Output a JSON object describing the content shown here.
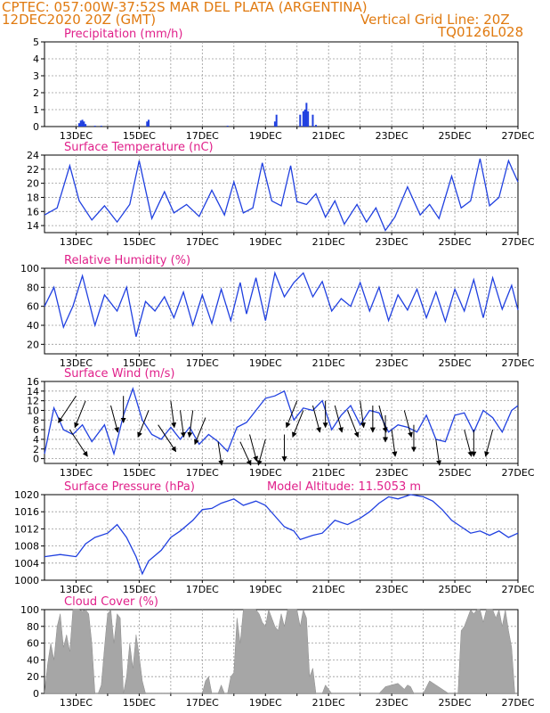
{
  "header": {
    "line1": "CPTEC:  057:00W-37:52S  MAR DEL PLATA (ARGENTINA)",
    "line2_left": "12DEC2020 20Z (GMT)",
    "line2_right": "Vertical Grid Line: 20Z",
    "line3_right": "TQ0126L028"
  },
  "colors": {
    "header": "#e07a10",
    "panel_title": "#e0208a",
    "series": "#2040e0",
    "cloud_fill": "#a6a6a6",
    "arrow": "#000000",
    "grid": "#9a9a9a"
  },
  "x_ticks": [
    "13DEC",
    "15DEC",
    "17DEC",
    "19DEC",
    "21DEC",
    "23DEC",
    "25DEC",
    "27DEC"
  ],
  "chart_data": [
    {
      "type": "bar",
      "title": "Precipitation (mm/h)",
      "yticks": [
        "0",
        "1",
        "2",
        "3",
        "4",
        "5"
      ],
      "ylim": [
        0,
        5
      ],
      "grid": true,
      "x_days": [
        13.1,
        13.15,
        13.2,
        13.25,
        13.3,
        13.6,
        13.8,
        15.25,
        15.3,
        17.8,
        19.3,
        19.35,
        20.1,
        20.2,
        20.25,
        20.3,
        20.35,
        20.5,
        20.6
      ],
      "values": [
        0.2,
        0.35,
        0.4,
        0.3,
        0.15,
        0.05,
        0.05,
        0.3,
        0.4,
        0.05,
        0.3,
        0.7,
        0.7,
        0.9,
        1.0,
        1.4,
        0.9,
        0.7,
        0.1
      ]
    },
    {
      "type": "line",
      "title": "Surface Temperature (nC)",
      "yticks": [
        "14",
        "16",
        "18",
        "20",
        "22",
        "24"
      ],
      "ylim": [
        13,
        24
      ],
      "grid": true,
      "x_days": [
        12.0,
        12.4,
        12.8,
        13.1,
        13.5,
        13.9,
        14.3,
        14.7,
        15.0,
        15.4,
        15.8,
        16.1,
        16.5,
        16.9,
        17.3,
        17.7,
        18.0,
        18.3,
        18.6,
        18.9,
        19.2,
        19.5,
        19.8,
        20.0,
        20.3,
        20.6,
        20.9,
        21.2,
        21.5,
        21.9,
        22.2,
        22.5,
        22.8,
        23.1,
        23.5,
        23.9,
        24.2,
        24.5,
        24.9,
        25.2,
        25.5,
        25.8,
        26.1,
        26.4,
        26.7,
        27.0
      ],
      "values": [
        15.5,
        16.5,
        22.5,
        17.5,
        14.8,
        16.8,
        14.5,
        17.0,
        23.2,
        15.0,
        18.8,
        15.8,
        17.0,
        15.3,
        19.0,
        15.5,
        20.2,
        15.8,
        16.5,
        22.9,
        17.5,
        16.8,
        22.5,
        17.4,
        17.0,
        18.5,
        15.2,
        17.5,
        14.2,
        17.0,
        14.5,
        16.5,
        13.3,
        15.2,
        19.5,
        15.5,
        17.0,
        15.0,
        21.0,
        16.5,
        17.5,
        23.5,
        16.8,
        18.0,
        23.2,
        20.2
      ]
    },
    {
      "type": "line",
      "title": "Relative Humidity (%)",
      "yticks": [
        "20",
        "40",
        "60",
        "80",
        "100"
      ],
      "ylim": [
        10,
        100
      ],
      "grid": true,
      "x_days": [
        12.0,
        12.3,
        12.6,
        12.9,
        13.2,
        13.6,
        13.9,
        14.3,
        14.6,
        14.9,
        15.2,
        15.5,
        15.8,
        16.1,
        16.4,
        16.7,
        17.0,
        17.3,
        17.6,
        17.9,
        18.2,
        18.4,
        18.7,
        19.0,
        19.3,
        19.6,
        19.9,
        20.2,
        20.5,
        20.8,
        21.1,
        21.4,
        21.7,
        22.0,
        22.3,
        22.6,
        22.9,
        23.2,
        23.5,
        23.8,
        24.1,
        24.4,
        24.7,
        25.0,
        25.3,
        25.6,
        25.9,
        26.2,
        26.5,
        26.8,
        27.0
      ],
      "values": [
        60,
        80,
        38,
        60,
        92,
        40,
        72,
        55,
        80,
        28,
        65,
        55,
        70,
        48,
        75,
        40,
        72,
        42,
        78,
        45,
        85,
        52,
        90,
        45,
        95,
        70,
        85,
        95,
        70,
        86,
        55,
        68,
        60,
        85,
        55,
        80,
        45,
        72,
        56,
        78,
        48,
        75,
        44,
        78,
        55,
        88,
        48,
        90,
        57,
        82,
        56
      ]
    },
    {
      "type": "line",
      "title": "Surface Wind (m/s)",
      "subtype": "wind-barbs",
      "yticks": [
        "0",
        "2",
        "4",
        "6",
        "8",
        "10",
        "12",
        "14",
        "16"
      ],
      "ylim": [
        -1,
        16
      ],
      "grid": true,
      "x_days": [
        12.0,
        12.3,
        12.6,
        12.9,
        13.2,
        13.5,
        13.9,
        14.2,
        14.5,
        14.8,
        15.1,
        15.4,
        15.7,
        16.0,
        16.3,
        16.6,
        16.9,
        17.2,
        17.5,
        17.8,
        18.1,
        18.4,
        18.7,
        19.0,
        19.3,
        19.6,
        19.9,
        20.2,
        20.5,
        20.8,
        21.1,
        21.4,
        21.7,
        22.0,
        22.3,
        22.6,
        22.9,
        23.2,
        23.5,
        23.8,
        24.1,
        24.4,
        24.7,
        25.0,
        25.3,
        25.6,
        25.9,
        26.2,
        26.5,
        26.8,
        27.0
      ],
      "values": [
        1.0,
        10.5,
        6.0,
        5.0,
        7.0,
        3.5,
        7.0,
        1.0,
        9.0,
        14.5,
        8.0,
        5.0,
        4.0,
        6.5,
        4.0,
        6.5,
        3.0,
        5.0,
        3.5,
        1.5,
        6.5,
        7.5,
        10.0,
        12.5,
        13.0,
        14.0,
        8.0,
        10.5,
        10.0,
        12.0,
        6.0,
        9.0,
        11.0,
        7.0,
        10.0,
        9.5,
        5.5,
        7.0,
        6.5,
        5.5,
        9.0,
        4.0,
        3.5,
        9.0,
        9.5,
        5.5,
        10.0,
        8.5,
        5.5,
        10.0,
        11.0
      ],
      "arrows": [
        [
          13.0,
          13,
          -2.5
        ],
        [
          13.3,
          12,
          -1.5
        ],
        [
          12.8,
          6,
          2.5
        ],
        [
          14.1,
          11,
          1.0
        ],
        [
          14.5,
          13,
          0.0
        ],
        [
          15.3,
          10,
          -1.5
        ],
        [
          15.6,
          7,
          2.5
        ],
        [
          16.0,
          12,
          0.5
        ],
        [
          16.3,
          10,
          0.5
        ],
        [
          16.7,
          10,
          -0.5
        ],
        [
          17.1,
          8.5,
          -1.5
        ],
        [
          17.5,
          3.5,
          0.5
        ],
        [
          18.2,
          3.5,
          1.5
        ],
        [
          18.5,
          5,
          1.0
        ],
        [
          19.0,
          4,
          -1.0
        ],
        [
          19.6,
          5,
          0.0
        ],
        [
          20.0,
          12,
          -1.5
        ],
        [
          20.2,
          10,
          -1.5
        ],
        [
          20.5,
          11,
          1.0
        ],
        [
          20.9,
          12,
          0.0
        ],
        [
          21.2,
          11,
          1.0
        ],
        [
          21.6,
          10,
          1.5
        ],
        [
          22.0,
          12,
          0.5
        ],
        [
          22.4,
          11,
          0.0
        ],
        [
          22.6,
          11,
          1.0
        ],
        [
          22.8,
          9,
          0.0
        ],
        [
          23.0,
          6,
          0.5
        ],
        [
          23.4,
          10,
          1.0
        ],
        [
          23.7,
          7,
          0.0
        ],
        [
          24.4,
          4,
          0.5
        ],
        [
          25.3,
          6,
          1.0
        ],
        [
          25.6,
          6,
          0.0
        ],
        [
          26.2,
          6,
          -1.0
        ]
      ]
    },
    {
      "type": "line",
      "title": "Surface Pressure (hPa)",
      "annotation": "Model Altitude: 11.5053 m",
      "yticks": [
        "1000",
        "1004",
        "1008",
        "1012",
        "1016",
        "1020"
      ],
      "ylim": [
        1000,
        1020
      ],
      "grid": true,
      "x_days": [
        12.0,
        12.5,
        13.0,
        13.3,
        13.6,
        14.0,
        14.3,
        14.6,
        14.9,
        15.1,
        15.3,
        15.7,
        16.0,
        16.3,
        16.7,
        17.0,
        17.3,
        17.6,
        18.0,
        18.3,
        18.7,
        19.0,
        19.3,
        19.6,
        19.9,
        20.1,
        20.5,
        20.8,
        21.2,
        21.6,
        22.0,
        22.3,
        22.6,
        22.9,
        23.2,
        23.6,
        24.0,
        24.3,
        24.6,
        24.9,
        25.2,
        25.5,
        25.8,
        26.1,
        26.4,
        26.7,
        27.0
      ],
      "values": [
        1005.5,
        1006.0,
        1005.5,
        1008.5,
        1010.0,
        1011.0,
        1013.0,
        1010.0,
        1005.5,
        1001.5,
        1004.5,
        1007.0,
        1010.0,
        1011.5,
        1014.0,
        1016.5,
        1016.8,
        1018.0,
        1019.0,
        1017.5,
        1018.5,
        1017.5,
        1015.0,
        1012.5,
        1011.5,
        1009.5,
        1010.5,
        1011.0,
        1014.0,
        1013.0,
        1014.5,
        1016.0,
        1018.0,
        1019.5,
        1019.0,
        1020.0,
        1019.5,
        1018.5,
        1016.5,
        1014.0,
        1012.5,
        1011.0,
        1011.5,
        1010.5,
        1011.5,
        1010.0,
        1011.0
      ]
    },
    {
      "type": "area",
      "title": "Cloud Cover (%)",
      "yticks": [
        "0",
        "20",
        "40",
        "60",
        "80",
        "100"
      ],
      "ylim": [
        0,
        100
      ],
      "grid": true,
      "x_days": [
        12.0,
        12.1,
        12.2,
        12.3,
        12.4,
        12.5,
        12.6,
        12.7,
        12.8,
        12.9,
        13.0,
        13.1,
        13.2,
        13.3,
        13.4,
        13.5,
        13.6,
        13.7,
        13.8,
        13.9,
        14.0,
        14.1,
        14.2,
        14.3,
        14.4,
        14.5,
        14.6,
        14.7,
        14.8,
        14.9,
        15.0,
        15.1,
        15.2,
        15.3,
        15.4,
        15.5,
        15.6,
        15.7,
        15.8,
        15.9,
        16.0,
        16.5,
        17.0,
        17.1,
        17.2,
        17.3,
        17.4,
        17.5,
        17.6,
        17.7,
        17.8,
        17.9,
        18.0,
        18.1,
        18.2,
        18.3,
        18.4,
        18.5,
        18.6,
        18.7,
        18.8,
        18.9,
        19.0,
        19.1,
        19.2,
        19.3,
        19.4,
        19.5,
        19.6,
        19.7,
        19.8,
        19.9,
        20.0,
        20.1,
        20.2,
        20.3,
        20.4,
        20.5,
        20.6,
        20.7,
        20.8,
        20.9,
        21.0,
        21.1,
        21.2,
        21.3,
        21.4,
        21.5,
        21.6,
        21.7,
        21.8,
        21.9,
        22.0,
        22.2,
        22.4,
        22.6,
        22.8,
        23.0,
        23.2,
        23.4,
        23.5,
        23.6,
        23.7,
        23.8,
        24.0,
        24.2,
        24.4,
        24.6,
        24.8,
        25.0,
        25.1,
        25.2,
        25.3,
        25.4,
        25.5,
        25.6,
        25.7,
        25.8,
        25.9,
        26.0,
        26.1,
        26.2,
        26.3,
        26.4,
        26.5,
        26.6,
        26.7,
        26.8,
        26.9,
        27.0
      ],
      "values": [
        0,
        35,
        60,
        40,
        80,
        95,
        55,
        70,
        50,
        100,
        100,
        100,
        98,
        100,
        95,
        60,
        0,
        0,
        10,
        55,
        95,
        100,
        60,
        95,
        90,
        0,
        20,
        60,
        30,
        70,
        45,
        15,
        0,
        0,
        0,
        0,
        0,
        0,
        0,
        0,
        0,
        0,
        0,
        15,
        20,
        0,
        0,
        0,
        10,
        0,
        0,
        20,
        25,
        90,
        60,
        100,
        100,
        100,
        100,
        100,
        95,
        85,
        80,
        100,
        90,
        80,
        75,
        95,
        80,
        100,
        100,
        100,
        100,
        80,
        100,
        90,
        20,
        30,
        0,
        0,
        0,
        10,
        5,
        0,
        0,
        0,
        0,
        0,
        0,
        0,
        0,
        0,
        0,
        0,
        0,
        0,
        8,
        10,
        12,
        5,
        10,
        8,
        0,
        0,
        0,
        15,
        10,
        5,
        0,
        0,
        0,
        75,
        80,
        90,
        100,
        95,
        100,
        100,
        85,
        100,
        100,
        100,
        90,
        100,
        80,
        100,
        75,
        55,
        0,
        0
      ]
    }
  ]
}
